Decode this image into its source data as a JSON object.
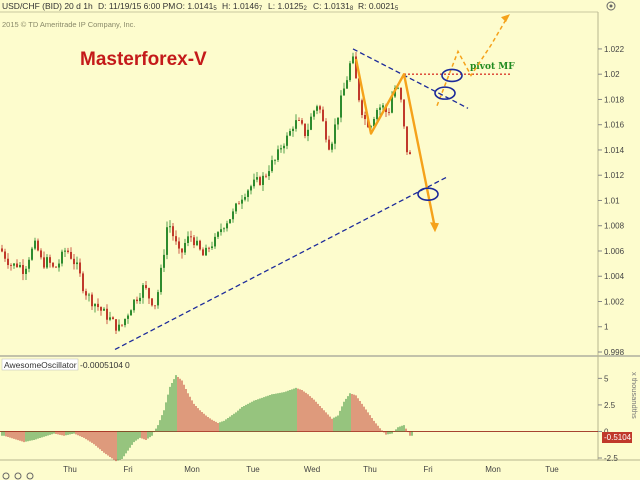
{
  "header": {
    "symbol": "USD/CHF (BID) 20 d 1h",
    "date": "D: 11/19/15 6:00 PM",
    "open": "O: 1.0141",
    "open_sub": "5",
    "high": "H: 1.0146",
    "high_sub": "7",
    "low": "L: 1.0125",
    "low_sub": "2",
    "close": "C: 1.0131",
    "close_sub": "8",
    "range": "R: 0.0021",
    "range_sub": "5"
  },
  "copyright": "2015 © TD Ameritrade IP Company, Inc.",
  "watermark": "Masterforex-V",
  "pivot_label": "pivot MF",
  "oscillator": {
    "name": "AwesomeOscillator",
    "value_text": "-0.0005104",
    "zero_text": "0",
    "badge": "-0.5104",
    "side_label": "x thousandths"
  },
  "colors": {
    "background": "#fdfccd",
    "up_candle": "#2e8b2e",
    "down_candle": "#c0392b",
    "trendline": "#1c2a9a",
    "forecast": "#f5a21a",
    "pivot": "#d93a2a",
    "circle": "#1c2a9a"
  },
  "chart_data": [
    {
      "type": "candlestick",
      "title": "USD/CHF (BID) 20 d 1h",
      "x_labels": [
        "Thu",
        "Fri",
        "Mon",
        "Tue",
        "Wed",
        "Thu",
        "Fri",
        "Mon",
        "Tue"
      ],
      "ylim": [
        0.998,
        1.0235
      ],
      "y_ticks": [
        "1.022",
        "1.02",
        "1.018",
        "1.016",
        "1.014",
        "1.012",
        "1.01",
        "1.008",
        "1.006",
        "1.004",
        "1.002",
        "1",
        "0.998"
      ],
      "approx_close_path": [
        [
          0,
          1.0062
        ],
        [
          6,
          1.0055
        ],
        [
          12,
          1.0048
        ],
        [
          18,
          1.005
        ],
        [
          24,
          1.0045
        ],
        [
          30,
          1.0058
        ],
        [
          36,
          1.0065
        ],
        [
          42,
          1.005
        ],
        [
          48,
          1.0052
        ],
        [
          54,
          1.0045
        ],
        [
          60,
          1.0052
        ],
        [
          66,
          1.0062
        ],
        [
          72,
          1.0055
        ],
        [
          78,
          1.0045
        ],
        [
          84,
          1.003
        ],
        [
          90,
          1.0022
        ],
        [
          96,
          1.0018
        ],
        [
          102,
          1.0012
        ],
        [
          108,
          1.0008
        ],
        [
          114,
          1.0002
        ],
        [
          120,
          0.9998
        ],
        [
          126,
          1.0008
        ],
        [
          132,
          1.0018
        ],
        [
          138,
          1.0025
        ],
        [
          144,
          1.0032
        ],
        [
          150,
          1.0022
        ],
        [
          156,
          1.0018
        ],
        [
          162,
          1.0048
        ],
        [
          168,
          1.0085
        ],
        [
          174,
          1.007
        ],
        [
          180,
          1.0055
        ],
        [
          186,
          1.0068
        ],
        [
          192,
          1.0072
        ],
        [
          198,
          1.0062
        ],
        [
          204,
          1.0055
        ],
        [
          210,
          1.0065
        ],
        [
          216,
          1.0068
        ],
        [
          222,
          1.008
        ],
        [
          228,
          1.0085
        ],
        [
          234,
          1.009
        ],
        [
          240,
          1.0102
        ],
        [
          246,
          1.0108
        ],
        [
          252,
          1.0112
        ],
        [
          258,
          1.0115
        ],
        [
          264,
          1.0118
        ],
        [
          270,
          1.0128
        ],
        [
          276,
          1.0132
        ],
        [
          282,
          1.0145
        ],
        [
          288,
          1.015
        ],
        [
          294,
          1.0162
        ],
        [
          300,
          1.016
        ],
        [
          306,
          1.0152
        ],
        [
          312,
          1.0168
        ],
        [
          318,
          1.0178
        ],
        [
          324,
          1.0158
        ],
        [
          330,
          1.0142
        ],
        [
          336,
          1.0162
        ],
        [
          342,
          1.0182
        ],
        [
          348,
          1.02
        ],
        [
          352,
          1.0215
        ],
        [
          358,
          1.0185
        ],
        [
          364,
          1.0165
        ],
        [
          370,
          1.016
        ],
        [
          376,
          1.0172
        ],
        [
          382,
          1.0175
        ],
        [
          388,
          1.0168
        ],
        [
          394,
          1.019
        ],
        [
          400,
          1.0185
        ],
        [
          406,
          1.0142
        ],
        [
          412,
          1.0131
        ]
      ],
      "trendlines": [
        {
          "role": "support",
          "from": [
            115,
            0.9982
          ],
          "to": [
            448,
            1.0119
          ]
        },
        {
          "role": "resistance",
          "from": [
            353,
            1.022
          ],
          "to": [
            468,
            1.0173
          ]
        }
      ],
      "pivot_level": 1.02,
      "forecast_paths": [
        [
          [
            356,
            1.0212
          ],
          [
            371,
            1.0153
          ],
          [
            404,
            1.02
          ],
          [
            435,
            1.0078
          ]
        ],
        [
          [
            437,
            1.0175
          ],
          [
            458,
            1.0218
          ],
          [
            471,
            1.0199
          ],
          [
            491,
            1.0223
          ],
          [
            508,
            1.0246
          ]
        ]
      ]
    },
    {
      "type": "bar",
      "title": "AwesomeOscillator",
      "ylim": [
        -2.5,
        5.6
      ],
      "y_ticks": [
        "5",
        "2.5",
        "0",
        "-2.5"
      ],
      "approx_values": [
        [
          4,
          -0.4
        ],
        [
          14,
          -0.7
        ],
        [
          24,
          -1.0
        ],
        [
          34,
          -0.8
        ],
        [
          44,
          -0.5
        ],
        [
          54,
          -0.2
        ],
        [
          64,
          -0.4
        ],
        [
          74,
          -0.2
        ],
        [
          84,
          -0.6
        ],
        [
          94,
          -1.2
        ],
        [
          104,
          -2.0
        ],
        [
          110,
          -2.4
        ],
        [
          116,
          -2.8
        ],
        [
          122,
          -2.6
        ],
        [
          128,
          -1.8
        ],
        [
          134,
          -1.0
        ],
        [
          140,
          -0.6
        ],
        [
          146,
          -0.8
        ],
        [
          152,
          -0.4
        ],
        [
          158,
          0.6
        ],
        [
          164,
          2.0
        ],
        [
          170,
          4.2
        ],
        [
          176,
          5.3
        ],
        [
          182,
          4.8
        ],
        [
          188,
          3.6
        ],
        [
          194,
          2.6
        ],
        [
          200,
          2.0
        ],
        [
          206,
          1.5
        ],
        [
          212,
          1.1
        ],
        [
          218,
          0.8
        ],
        [
          224,
          1.0
        ],
        [
          230,
          1.4
        ],
        [
          236,
          1.8
        ],
        [
          242,
          2.3
        ],
        [
          248,
          2.6
        ],
        [
          254,
          2.9
        ],
        [
          260,
          3.1
        ],
        [
          266,
          3.3
        ],
        [
          272,
          3.5
        ],
        [
          278,
          3.6
        ],
        [
          284,
          3.7
        ],
        [
          290,
          3.9
        ],
        [
          296,
          4.1
        ],
        [
          302,
          3.9
        ],
        [
          308,
          3.5
        ],
        [
          314,
          3.0
        ],
        [
          320,
          2.4
        ],
        [
          326,
          1.8
        ],
        [
          332,
          1.2
        ],
        [
          338,
          1.5
        ],
        [
          344,
          2.8
        ],
        [
          350,
          3.6
        ],
        [
          356,
          3.4
        ],
        [
          362,
          2.6
        ],
        [
          368,
          1.8
        ],
        [
          374,
          1.0
        ],
        [
          380,
          0.3
        ],
        [
          386,
          -0.3
        ],
        [
          392,
          -0.2
        ],
        [
          398,
          0.4
        ],
        [
          404,
          0.6
        ],
        [
          410,
          -0.4
        ]
      ],
      "last_value": -0.5104
    }
  ]
}
